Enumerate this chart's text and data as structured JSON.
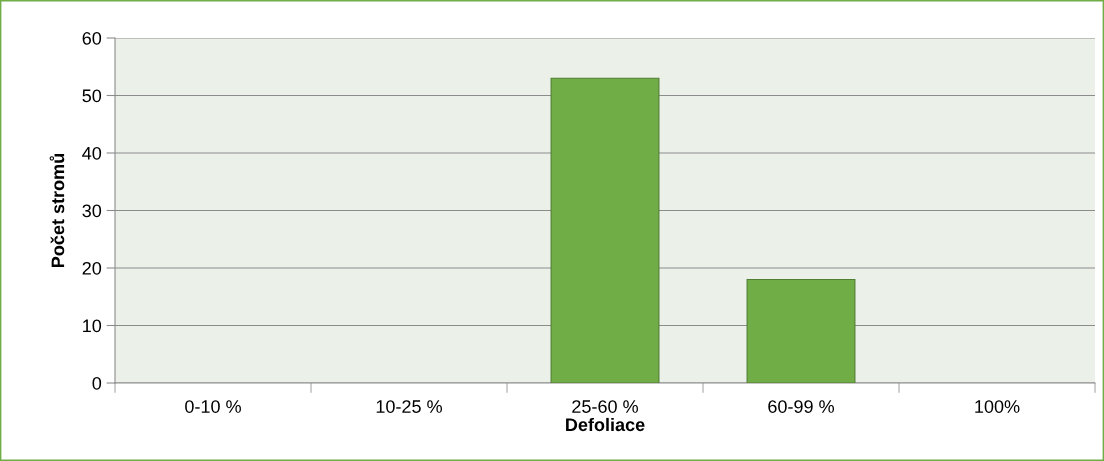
{
  "chart_data": {
    "type": "bar",
    "xlabel": "Defoliace",
    "ylabel": "Počet stromů",
    "categories": [
      "0-10 %",
      "10-25 %",
      "25-60 %",
      "60-99 %",
      "100%"
    ],
    "values": [
      0,
      0,
      53,
      18,
      0
    ],
    "color": "#70ad47",
    "ylim": [
      0,
      60
    ],
    "yticks": [
      0,
      10,
      20,
      30,
      40,
      50,
      60
    ],
    "grid": "y"
  }
}
